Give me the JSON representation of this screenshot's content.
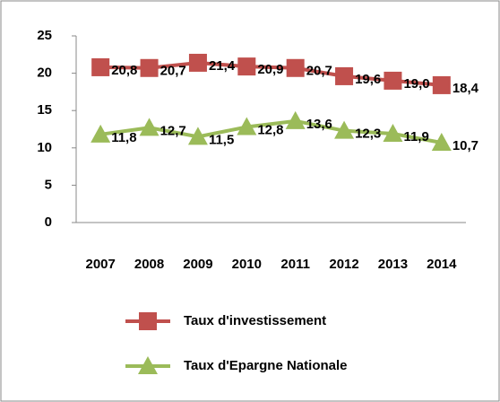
{
  "chart_data": {
    "type": "line",
    "categories": [
      "2007",
      "2008",
      "2009",
      "2010",
      "2011",
      "2012",
      "2013",
      "2014"
    ],
    "series": [
      {
        "name": "Taux d'investissement",
        "color": "#c0504d",
        "marker": "square",
        "values": [
          20.8,
          20.7,
          21.4,
          20.9,
          20.7,
          19.6,
          19.0,
          18.4
        ],
        "value_labels": [
          "20,8",
          "20,7",
          "21,4",
          "20,9",
          "20,7",
          "19,6",
          "19,0",
          "18,4"
        ]
      },
      {
        "name": "Taux d'Epargne  Nationale",
        "color": "#9bbb59",
        "marker": "triangle",
        "values": [
          11.8,
          12.7,
          11.5,
          12.8,
          13.6,
          12.3,
          11.9,
          10.7
        ],
        "value_labels": [
          "11,8",
          "12,7",
          "11,5",
          "12,8",
          "13,6",
          "12,3",
          "11,9",
          "10,7"
        ]
      }
    ],
    "ylim": [
      0,
      25
    ],
    "yticks": [
      0,
      5,
      10,
      15,
      20,
      25
    ],
    "grid": false,
    "legend": "bottom"
  }
}
